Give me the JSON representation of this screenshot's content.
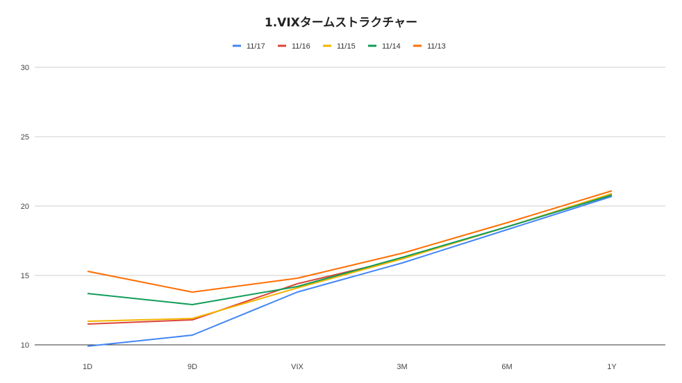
{
  "chart_data": {
    "type": "line",
    "title": "1.VIXタームストラクチャー",
    "categories": [
      "1D",
      "9D",
      "VIX",
      "3M",
      "6M",
      "1Y"
    ],
    "ylim": [
      10,
      30
    ],
    "yticks": [
      "10",
      "15",
      "20",
      "25",
      "30"
    ],
    "grid": true,
    "legend": "top-center",
    "series": [
      {
        "name": "11/17",
        "color": "#4285f4",
        "values": [
          9.9,
          10.7,
          13.8,
          15.9,
          18.3,
          20.7
        ]
      },
      {
        "name": "11/16",
        "color": "#db4437",
        "values": [
          11.5,
          11.8,
          14.4,
          16.2,
          18.5,
          20.8
        ]
      },
      {
        "name": "11/15",
        "color": "#f4b400",
        "values": [
          11.7,
          11.9,
          14.1,
          16.2,
          18.5,
          20.9
        ]
      },
      {
        "name": "11/14",
        "color": "#0f9d58",
        "values": [
          13.7,
          12.9,
          14.2,
          16.3,
          18.5,
          20.8
        ]
      },
      {
        "name": "11/13",
        "color": "#ff6d00",
        "values": [
          15.3,
          13.8,
          14.8,
          16.6,
          18.8,
          21.1
        ]
      }
    ]
  }
}
